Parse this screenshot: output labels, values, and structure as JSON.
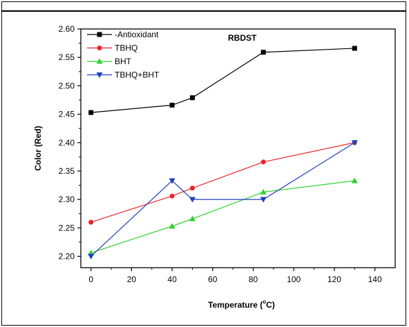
{
  "chart_data": {
    "type": "line",
    "title": "",
    "annotation": "RBDST",
    "xlabel": "Temperature (°C)",
    "xlabel_prefix": "Temperature (",
    "xlabel_sup": "o",
    "xlabel_suffix": "C)",
    "ylabel": "Color (Red)",
    "xlim": [
      -5,
      150
    ],
    "ylim": [
      2.18,
      2.6
    ],
    "x_ticks": [
      0,
      20,
      40,
      60,
      80,
      100,
      120,
      140
    ],
    "y_ticks": [
      2.2,
      2.25,
      2.3,
      2.35,
      2.4,
      2.45,
      2.5,
      2.55,
      2.6
    ],
    "x": [
      0,
      40,
      50,
      85,
      130
    ],
    "legend_position": "top-left",
    "series": [
      {
        "name": "-Antioxidant",
        "color": "#000000",
        "marker": "square",
        "values": [
          2.453,
          2.466,
          2.479,
          2.559,
          2.566
        ]
      },
      {
        "name": "TBHQ",
        "color": "#e8242a",
        "marker": "circle",
        "values": [
          2.26,
          2.306,
          2.32,
          2.366,
          2.4
        ]
      },
      {
        "name": "BHT",
        "color": "#2fd12f",
        "marker": "triangle-up",
        "values": [
          2.206,
          2.253,
          2.266,
          2.313,
          2.333
        ]
      },
      {
        "name": "TBHQ+BHT",
        "color": "#1f3fbf",
        "marker": "triangle-down",
        "values": [
          2.2,
          2.333,
          2.3,
          2.3,
          2.4
        ]
      }
    ]
  }
}
